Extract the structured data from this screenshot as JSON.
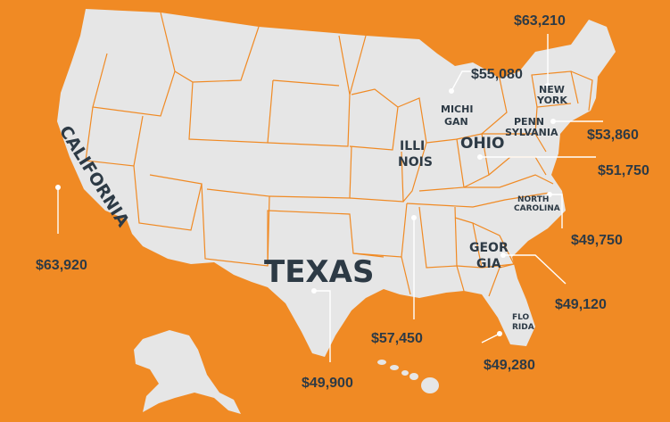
{
  "colors": {
    "background": "#f08a24",
    "land": "#e6e6e6",
    "borders": "#f08a24",
    "text": "#2d3a45",
    "leaders": "#ffffff"
  },
  "states": [
    {
      "key": "california",
      "label": "CALIFORNIA",
      "amount": "$63,920"
    },
    {
      "key": "texas",
      "label": "TEXAS",
      "amount": "$49,900"
    },
    {
      "key": "illinois",
      "label_lines": [
        "ILLI",
        "NOIS"
      ],
      "amount": "$57,450"
    },
    {
      "key": "michigan",
      "label_lines": [
        "MICHI",
        "GAN"
      ],
      "amount": "$55,080"
    },
    {
      "key": "ohio",
      "label": "OHIO",
      "amount": "$51,750"
    },
    {
      "key": "new-york",
      "label_lines": [
        "NEW",
        "YORK"
      ],
      "amount": "$63,210"
    },
    {
      "key": "pennsylvania",
      "label_lines": [
        "PENN",
        "SYLVANIA"
      ],
      "amount": "$53,860"
    },
    {
      "key": "north-carolina",
      "label_lines": [
        "NORTH",
        "CAROLINA"
      ],
      "amount": "$49,750"
    },
    {
      "key": "georgia",
      "label_lines": [
        "GEOR",
        "GIA"
      ],
      "amount": "$49,120"
    },
    {
      "key": "florida",
      "label_lines": [
        "FLO",
        "RIDA"
      ],
      "amount": "$49,280"
    }
  ]
}
